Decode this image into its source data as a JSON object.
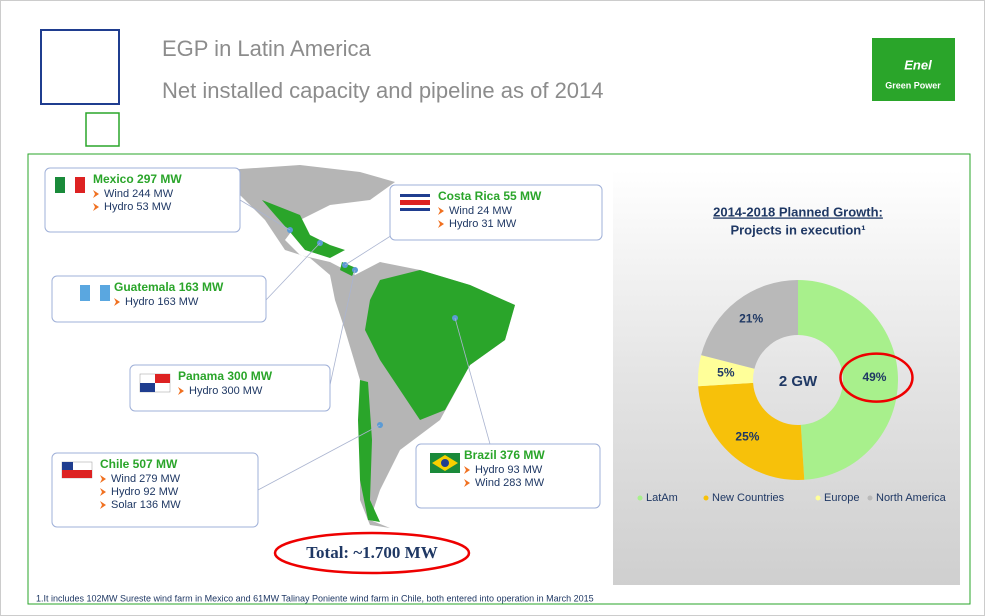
{
  "header": {
    "title": "EGP in Latin America",
    "subtitle": "Net installed capacity and pipeline as of 2014",
    "logo": [
      "Enel",
      "Green Power"
    ]
  },
  "countries": [
    {
      "name": "Mexico 297 MW",
      "items": [
        "Wind 244 MW",
        "Hydro 53 MW"
      ]
    },
    {
      "name": "Costa Rica 55 MW",
      "items": [
        "Wind 24 MW",
        "Hydro 31 MW"
      ]
    },
    {
      "name": "Guatemala 163 MW",
      "items": [
        "Hydro 163 MW"
      ]
    },
    {
      "name": "Panama 300 MW",
      "items": [
        "Hydro 300 MW"
      ]
    },
    {
      "name": "Chile  507 MW",
      "items": [
        "Wind 279 MW",
        "Hydro 92 MW",
        "Solar 136 MW"
      ]
    },
    {
      "name": "Brazil 376 MW",
      "items": [
        "Hydro 93 MW",
        "Wind 283 MW"
      ]
    }
  ],
  "total": "Total: ~1.700 MW",
  "chart_data": {
    "type": "pie",
    "title": "2014-2018 Planned Growth:",
    "subtitle": "Projects in execution¹",
    "center_label": "2 GW",
    "categories": [
      "LatAm",
      "New Countries",
      "Europe",
      "North America"
    ],
    "values": [
      49,
      25,
      5,
      21
    ],
    "value_labels": [
      "49%",
      "25%",
      "5%",
      "21%"
    ],
    "colors": [
      "#a8f08c",
      "#f7c10a",
      "#ffff99",
      "#b9b9b9"
    ]
  },
  "footnote": "1.It includes 102MW Sureste wind farm in Mexico and 61MW Talinay Poniente wind farm in Chile, both entered into operation in March 2015"
}
